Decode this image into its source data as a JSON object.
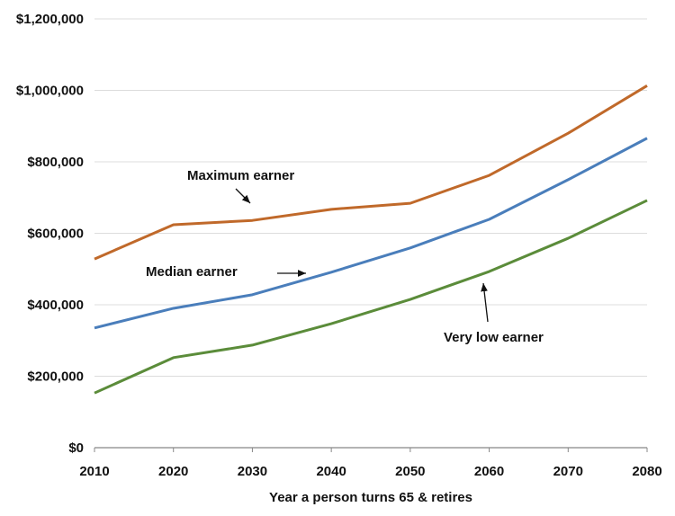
{
  "chart_data": {
    "type": "line",
    "title": "",
    "xlabel": "Year a person turns 65 & retires",
    "ylabel": "",
    "x": [
      2010,
      2020,
      2030,
      2040,
      2050,
      2060,
      2070,
      2080
    ],
    "xlim": [
      2010,
      2080
    ],
    "ylim": [
      0,
      1200000
    ],
    "x_ticks": [
      "2010",
      "2020",
      "2030",
      "2040",
      "2050",
      "2060",
      "2070",
      "2080"
    ],
    "y_ticks": [
      {
        "value": 0,
        "label": "$0"
      },
      {
        "value": 200000,
        "label": "$200,000"
      },
      {
        "value": 400000,
        "label": "$400,000"
      },
      {
        "value": 600000,
        "label": "$600,000"
      },
      {
        "value": 800000,
        "label": "$800,000"
      },
      {
        "value": 1000000,
        "label": "$1,000,000"
      },
      {
        "value": 1200000,
        "label": "$1,200,000"
      }
    ],
    "grid": "horizontal",
    "series": [
      {
        "name": "Maximum earner",
        "color": "#c0692a",
        "values": [
          528000,
          624000,
          636000,
          667000,
          684000,
          762000,
          880000,
          1013000
        ]
      },
      {
        "name": "Median earner",
        "color": "#4a7ebb",
        "values": [
          335000,
          390000,
          428000,
          491000,
          559000,
          639000,
          750000,
          866000
        ]
      },
      {
        "name": "Very low earner",
        "color": "#5b8c3a",
        "values": [
          153000,
          252000,
          287000,
          347000,
          415000,
          493000,
          586000,
          692000
        ]
      }
    ],
    "annotations": [
      {
        "text": "Maximum earner",
        "series": 0,
        "arrow_to_x": 2036
      },
      {
        "text": "Median earner",
        "series": 1,
        "arrow_to_x": 2036
      },
      {
        "text": "Very low earner",
        "series": 2,
        "arrow_to_x": 2060
      }
    ]
  }
}
